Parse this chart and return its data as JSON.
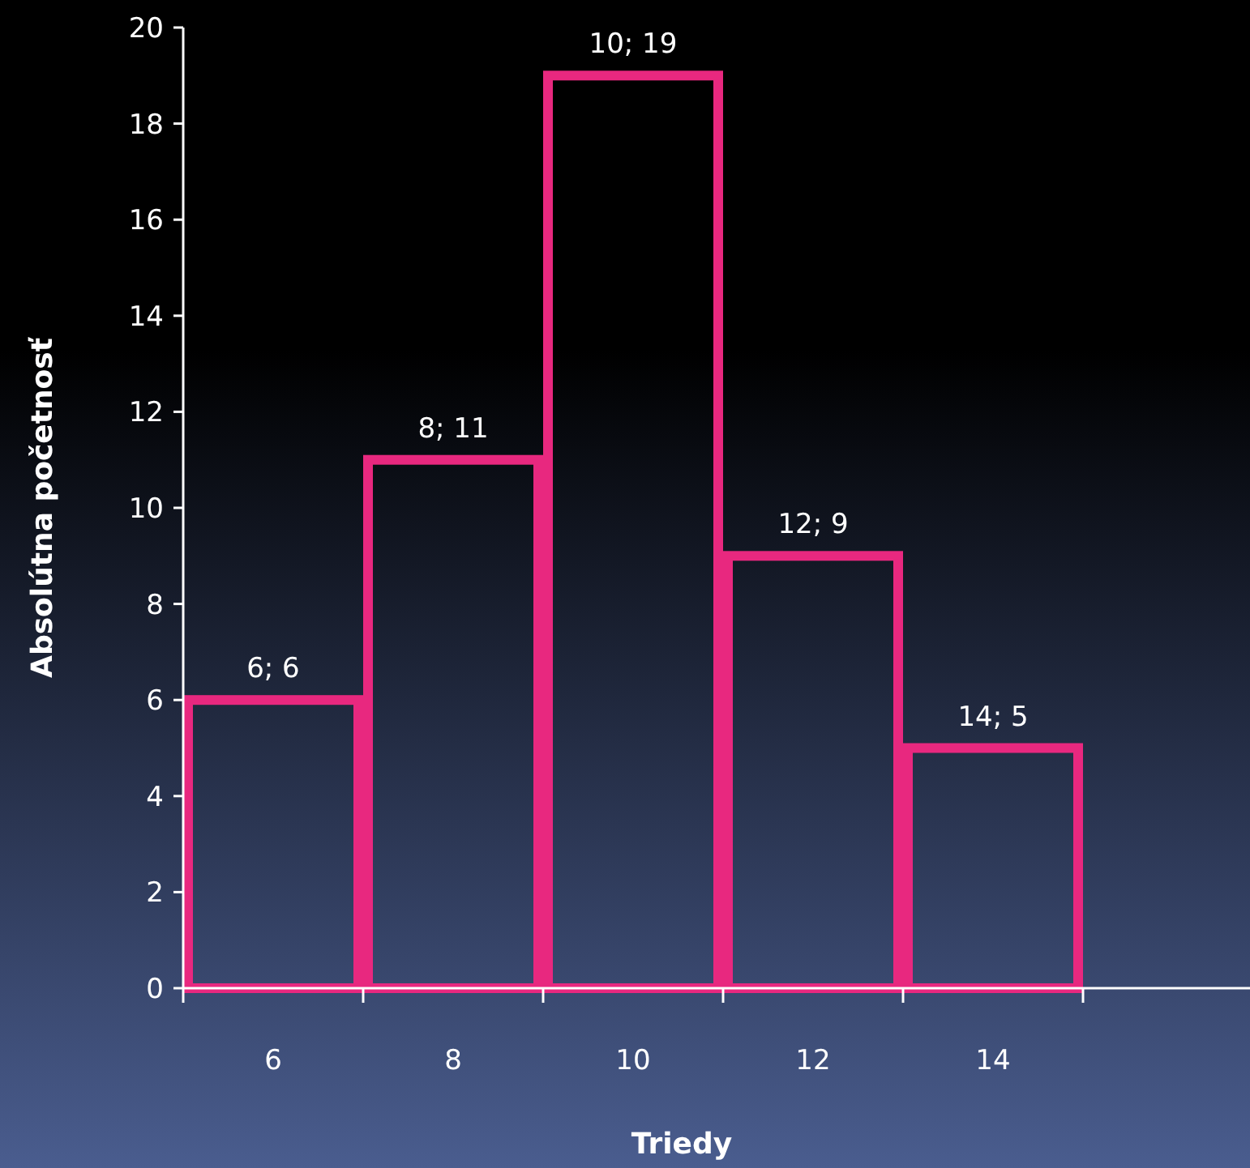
{
  "chart_data": {
    "type": "bar",
    "xlabel": "Triedy",
    "ylabel": "Absolútna početnosť",
    "categories": [
      "6",
      "8",
      "10",
      "12",
      "14"
    ],
    "values": [
      6,
      11,
      19,
      9,
      5
    ],
    "value_labels": [
      "6; 6",
      "8; 11",
      "10; 19",
      "12; 9",
      "14; 5"
    ],
    "color": "#e8287f",
    "ylim": [
      0,
      20
    ],
    "yticks": [
      0,
      2,
      4,
      6,
      8,
      10,
      12,
      14,
      16,
      18,
      20
    ],
    "grid": false
  }
}
